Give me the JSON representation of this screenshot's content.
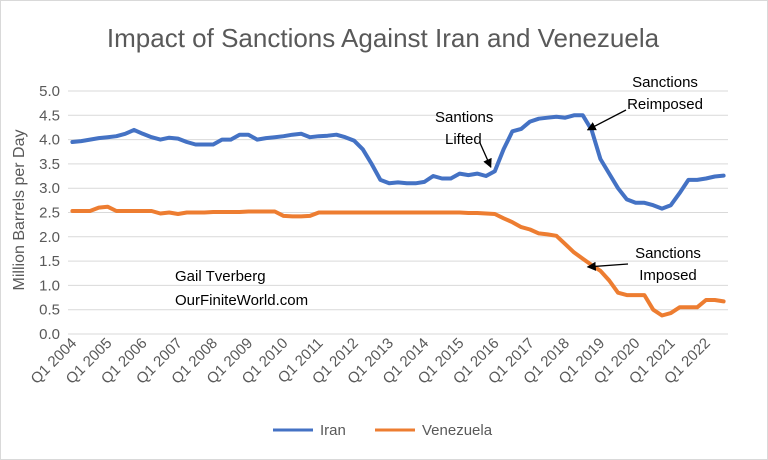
{
  "chart_data": {
    "type": "line",
    "title": "Impact of Sanctions Against Iran and Venezuela",
    "ylabel": "Million Barrels per Day",
    "ylim": [
      0,
      5
    ],
    "y_ticks": [
      "0.0",
      "0.5",
      "1.0",
      "1.5",
      "2.0",
      "2.5",
      "3.0",
      "3.5",
      "4.0",
      "4.5",
      "5.0"
    ],
    "x_tick_labels": [
      "Q1 2004",
      "Q1 2005",
      "Q1 2006",
      "Q1 2007",
      "Q1 2008",
      "Q1 2009",
      "Q1 2010",
      "Q1 2011",
      "Q1 2012",
      "Q1 2013",
      "Q1 2014",
      "Q1 2015",
      "Q1 2016",
      "Q1 2017",
      "Q1 2018",
      "Q1 2019",
      "Q1 2020",
      "Q1 2021",
      "Q1 2022"
    ],
    "grid": true,
    "legend_position": "bottom",
    "series": [
      {
        "name": "Iran",
        "color": "#4472c4",
        "values": [
          3.95,
          3.97,
          4.0,
          4.03,
          4.05,
          4.07,
          4.12,
          4.2,
          4.12,
          4.05,
          4.0,
          4.04,
          4.02,
          3.95,
          3.9,
          3.9,
          3.9,
          4.0,
          4.0,
          4.1,
          4.1,
          4.0,
          4.03,
          4.05,
          4.07,
          4.1,
          4.12,
          4.05,
          4.07,
          4.08,
          4.1,
          4.05,
          3.98,
          3.8,
          3.5,
          3.17,
          3.1,
          3.12,
          3.1,
          3.1,
          3.13,
          3.25,
          3.2,
          3.2,
          3.3,
          3.27,
          3.3,
          3.25,
          3.35,
          3.8,
          4.17,
          4.22,
          4.37,
          4.43,
          4.45,
          4.47,
          4.45,
          4.5,
          4.5,
          4.2,
          3.6,
          3.3,
          3.0,
          2.77,
          2.7,
          2.7,
          2.65,
          2.58,
          2.65,
          2.9,
          3.17,
          3.17,
          3.2,
          3.24,
          3.26
        ]
      },
      {
        "name": "Venezuela",
        "color": "#ed7d31",
        "values": [
          2.53,
          2.53,
          2.53,
          2.6,
          2.62,
          2.53,
          2.53,
          2.53,
          2.53,
          2.53,
          2.48,
          2.5,
          2.47,
          2.5,
          2.5,
          2.5,
          2.51,
          2.51,
          2.51,
          2.51,
          2.52,
          2.52,
          2.52,
          2.52,
          2.43,
          2.42,
          2.42,
          2.43,
          2.5,
          2.5,
          2.5,
          2.5,
          2.5,
          2.5,
          2.5,
          2.5,
          2.5,
          2.5,
          2.5,
          2.5,
          2.5,
          2.5,
          2.5,
          2.5,
          2.5,
          2.49,
          2.49,
          2.48,
          2.47,
          2.38,
          2.3,
          2.2,
          2.15,
          2.07,
          2.05,
          2.02,
          1.85,
          1.68,
          1.55,
          1.42,
          1.3,
          1.1,
          0.85,
          0.8,
          0.8,
          0.8,
          0.5,
          0.38,
          0.43,
          0.55,
          0.55,
          0.55,
          0.7,
          0.7,
          0.67
        ]
      }
    ],
    "annotations": [
      {
        "lines": [
          "Santions",
          "Lifted"
        ],
        "target_quarter_index": 48,
        "target_value": 3.35
      },
      {
        "lines": [
          "Sanctions",
          "Reimposed"
        ],
        "target_quarter_index": 59,
        "target_value": 4.2
      },
      {
        "lines": [
          "Sanctions",
          "Imposed"
        ],
        "target_quarter_index": 59,
        "target_value": 1.38
      }
    ],
    "watermark_lines": [
      "Gail Tverberg",
      "OurFiniteWorld.com"
    ]
  }
}
